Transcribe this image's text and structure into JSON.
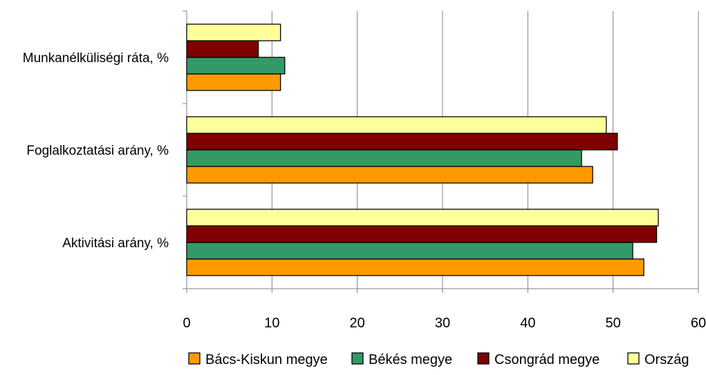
{
  "chart_data": {
    "type": "bar",
    "orientation": "horizontal",
    "categories": [
      "Munkanélküliségi ráta, %",
      "Foglalkoztatási arány, %",
      "Aktivitási arány, %"
    ],
    "series": [
      {
        "name": "Bács-Kiskun megye",
        "color": "#FF9900",
        "values": [
          11.0,
          47.6,
          53.6
        ]
      },
      {
        "name": "Békés megye",
        "color": "#339966",
        "values": [
          11.5,
          46.3,
          52.3
        ]
      },
      {
        "name": "Csongrád megye",
        "color": "#800000",
        "values": [
          8.4,
          50.5,
          55.1
        ]
      },
      {
        "name": "Ország",
        "color": "#FFFF99",
        "values": [
          11.0,
          49.2,
          55.3
        ]
      }
    ],
    "xlim": [
      0,
      60
    ],
    "xticks": [
      "0",
      "10",
      "20",
      "30",
      "40",
      "50",
      "60"
    ],
    "grid": true,
    "legend_position": "bottom"
  }
}
